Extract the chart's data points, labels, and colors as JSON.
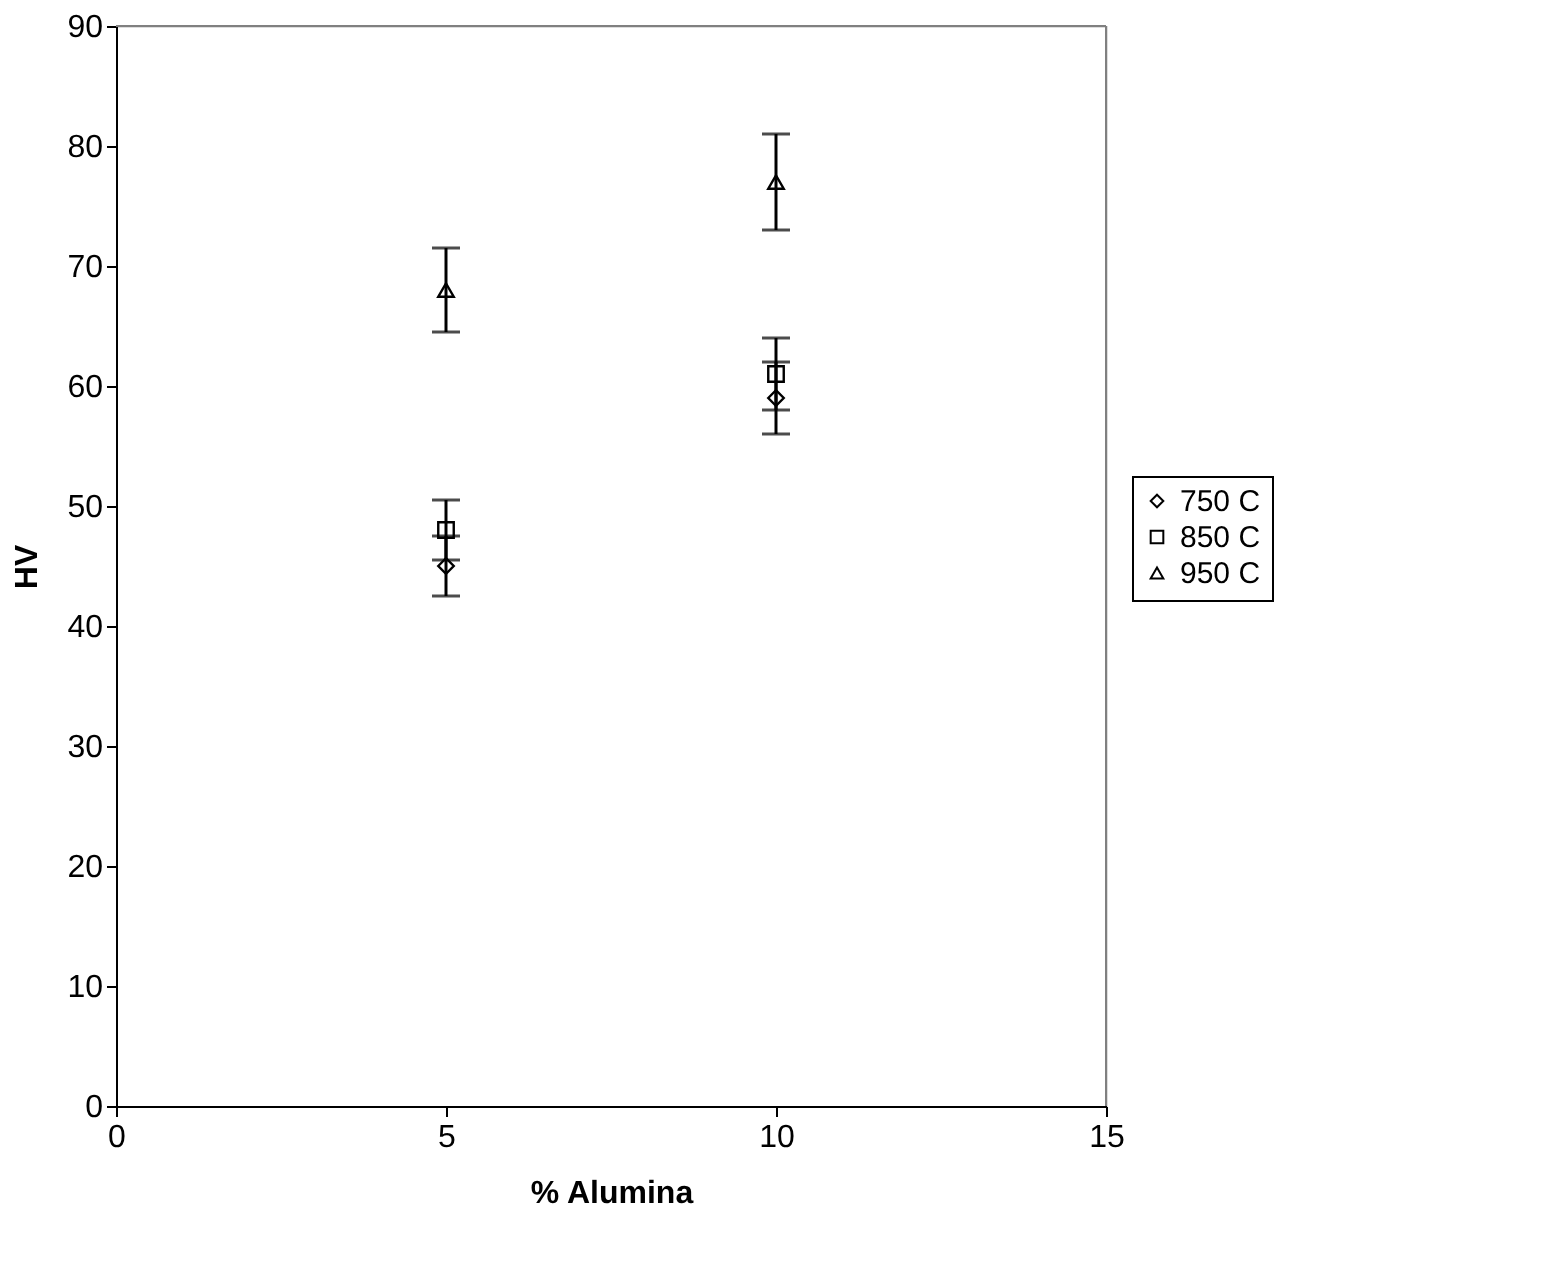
{
  "chart_data": {
    "type": "scatter",
    "xlabel": "% Alumina",
    "ylabel": "HV",
    "x": [
      5,
      10
    ],
    "series": [
      {
        "name": "750 C",
        "color": "#000000",
        "marker": "diamond",
        "values": [
          45,
          59
        ],
        "errors": [
          2.5,
          3
        ]
      },
      {
        "name": "850 C",
        "color": "#000000",
        "marker": "square",
        "values": [
          48,
          61
        ],
        "errors": [
          2.5,
          3
        ]
      },
      {
        "name": "950 C",
        "color": "#000000",
        "marker": "triangle",
        "values": [
          68,
          77
        ],
        "errors": [
          3.5,
          4
        ]
      }
    ],
    "xlim": [
      0,
      15
    ],
    "xticks": [
      0,
      5,
      10,
      15
    ],
    "ylim": [
      0,
      90
    ],
    "yticks": [
      0,
      10,
      20,
      30,
      40,
      50,
      60,
      70,
      80,
      90
    ],
    "grid": false,
    "legend": "right"
  }
}
